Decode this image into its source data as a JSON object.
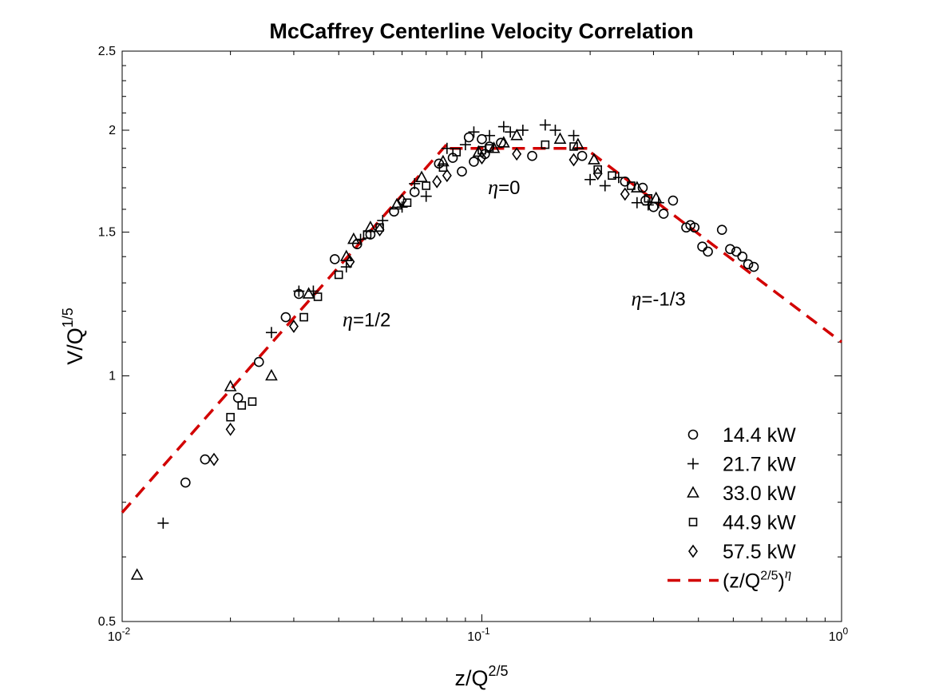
{
  "chart_data": {
    "type": "scatter",
    "title": "McCaffrey Centerline Velocity Correlation",
    "xlabel": {
      "base": "z/Q",
      "sup": "2/5"
    },
    "ylabel": {
      "base": "V/Q",
      "sup": "1/5"
    },
    "xscale": "log",
    "yscale": "log",
    "xlim": [
      0.01,
      1
    ],
    "ylim": [
      0.5,
      2.5
    ],
    "x_ticks": [
      {
        "value": 0.01,
        "base": "10",
        "sup": "-2"
      },
      {
        "value": 0.1,
        "base": "10",
        "sup": "-1"
      },
      {
        "value": 1,
        "base": "10",
        "sup": "0"
      }
    ],
    "y_ticks": [
      {
        "value": 0.5,
        "label": "0.5"
      },
      {
        "value": 1,
        "label": "1"
      },
      {
        "value": 1.5,
        "label": "1.5"
      },
      {
        "value": 2,
        "label": "2"
      },
      {
        "value": 2.5,
        "label": "2.5"
      }
    ],
    "grid": false,
    "legend_position": "bottom-right",
    "series": [
      {
        "name": "14.4 kW",
        "marker": "circle",
        "points": [
          [
            0.015,
            0.74
          ],
          [
            0.017,
            0.79
          ],
          [
            0.021,
            0.94
          ],
          [
            0.024,
            1.04
          ],
          [
            0.0285,
            1.18
          ],
          [
            0.031,
            1.26
          ],
          [
            0.039,
            1.39
          ],
          [
            0.045,
            1.45
          ],
          [
            0.049,
            1.49
          ],
          [
            0.057,
            1.59
          ],
          [
            0.065,
            1.68
          ],
          [
            0.076,
            1.82
          ],
          [
            0.083,
            1.85
          ],
          [
            0.088,
            1.78
          ],
          [
            0.092,
            1.96
          ],
          [
            0.095,
            1.83
          ],
          [
            0.1,
            1.95
          ],
          [
            0.102,
            1.87
          ],
          [
            0.105,
            1.91
          ],
          [
            0.113,
            1.93
          ],
          [
            0.138,
            1.86
          ],
          [
            0.19,
            1.86
          ],
          [
            0.25,
            1.73
          ],
          [
            0.28,
            1.7
          ],
          [
            0.285,
            1.64
          ],
          [
            0.3,
            1.61
          ],
          [
            0.32,
            1.58
          ],
          [
            0.34,
            1.64
          ],
          [
            0.37,
            1.52
          ],
          [
            0.38,
            1.53
          ],
          [
            0.39,
            1.52
          ],
          [
            0.41,
            1.44
          ],
          [
            0.425,
            1.42
          ],
          [
            0.465,
            1.51
          ],
          [
            0.49,
            1.43
          ],
          [
            0.51,
            1.42
          ],
          [
            0.53,
            1.4
          ],
          [
            0.55,
            1.37
          ],
          [
            0.57,
            1.36
          ]
        ]
      },
      {
        "name": "21.7 kW",
        "marker": "plus",
        "points": [
          [
            0.013,
            0.66
          ],
          [
            0.026,
            1.13
          ],
          [
            0.031,
            1.27
          ],
          [
            0.034,
            1.27
          ],
          [
            0.042,
            1.36
          ],
          [
            0.046,
            1.47
          ],
          [
            0.053,
            1.55
          ],
          [
            0.06,
            1.61
          ],
          [
            0.065,
            1.72
          ],
          [
            0.07,
            1.66
          ],
          [
            0.08,
            1.9
          ],
          [
            0.09,
            1.92
          ],
          [
            0.095,
            1.99
          ],
          [
            0.105,
            1.97
          ],
          [
            0.115,
            2.02
          ],
          [
            0.12,
            1.99
          ],
          [
            0.13,
            2.0
          ],
          [
            0.15,
            2.03
          ],
          [
            0.16,
            2.0
          ],
          [
            0.18,
            1.97
          ],
          [
            0.2,
            1.74
          ],
          [
            0.22,
            1.71
          ],
          [
            0.24,
            1.75
          ],
          [
            0.27,
            1.63
          ],
          [
            0.29,
            1.62
          ],
          [
            0.31,
            1.63
          ]
        ]
      },
      {
        "name": "33.0 kW",
        "marker": "triangle",
        "points": [
          [
            0.011,
            0.57
          ],
          [
            0.02,
            0.97
          ],
          [
            0.026,
            1.0
          ],
          [
            0.033,
            1.26
          ],
          [
            0.042,
            1.4
          ],
          [
            0.044,
            1.47
          ],
          [
            0.049,
            1.52
          ],
          [
            0.058,
            1.62
          ],
          [
            0.068,
            1.75
          ],
          [
            0.078,
            1.83
          ],
          [
            0.098,
            1.88
          ],
          [
            0.108,
            1.9
          ],
          [
            0.115,
            1.93
          ],
          [
            0.125,
            1.97
          ],
          [
            0.165,
            1.95
          ],
          [
            0.185,
            1.92
          ],
          [
            0.205,
            1.84
          ],
          [
            0.27,
            1.7
          ],
          [
            0.305,
            1.65
          ]
        ]
      },
      {
        "name": "44.9 kW",
        "marker": "square",
        "points": [
          [
            0.02,
            0.89
          ],
          [
            0.0215,
            0.92
          ],
          [
            0.023,
            0.93
          ],
          [
            0.032,
            1.18
          ],
          [
            0.035,
            1.25
          ],
          [
            0.04,
            1.33
          ],
          [
            0.048,
            1.49
          ],
          [
            0.052,
            1.52
          ],
          [
            0.062,
            1.63
          ],
          [
            0.07,
            1.71
          ],
          [
            0.078,
            1.8
          ],
          [
            0.085,
            1.88
          ],
          [
            0.1,
            1.89
          ],
          [
            0.105,
            1.9
          ],
          [
            0.15,
            1.92
          ],
          [
            0.18,
            1.91
          ],
          [
            0.21,
            1.79
          ],
          [
            0.23,
            1.76
          ],
          [
            0.26,
            1.71
          ],
          [
            0.29,
            1.65
          ]
        ]
      },
      {
        "name": "57.5 kW",
        "marker": "diamond",
        "points": [
          [
            0.018,
            0.79
          ],
          [
            0.02,
            0.86
          ],
          [
            0.03,
            1.15
          ],
          [
            0.043,
            1.38
          ],
          [
            0.052,
            1.51
          ],
          [
            0.06,
            1.64
          ],
          [
            0.075,
            1.73
          ],
          [
            0.08,
            1.76
          ],
          [
            0.1,
            1.85
          ],
          [
            0.125,
            1.87
          ],
          [
            0.18,
            1.84
          ],
          [
            0.21,
            1.77
          ],
          [
            0.25,
            1.67
          ]
        ]
      },
      {
        "name": "(z/Q^{2/5})^η",
        "style": "dashed",
        "color": "#d20000",
        "regimes": [
          {
            "eta": "1/2",
            "coef": 6.8,
            "x_from": 0.01,
            "x_to": 0.08
          },
          {
            "eta": "0",
            "coef": 1.9,
            "x_from": 0.08,
            "x_to": 0.2
          },
          {
            "eta": "-1/3",
            "coef": 1.1,
            "x_from": 0.2,
            "x_to": 1.0
          }
        ]
      }
    ],
    "annotations": [
      {
        "symbol": "η",
        "text": "=0",
        "x": 0.104,
        "y": 1.67
      },
      {
        "symbol": "η",
        "text": "=1/2",
        "x": 0.041,
        "y": 1.15
      },
      {
        "symbol": "η",
        "text": "=-1/3",
        "x": 0.26,
        "y": 1.22
      }
    ],
    "legend": [
      {
        "marker": "circle",
        "label": "14.4 kW"
      },
      {
        "marker": "plus",
        "label": "21.7 kW"
      },
      {
        "marker": "triangle",
        "label": "33.0 kW"
      },
      {
        "marker": "square",
        "label": "44.9 kW"
      },
      {
        "marker": "diamond",
        "label": "57.5 kW"
      },
      {
        "marker": "dashed-line",
        "label_base": "(z/Q",
        "label_sup": "2/5",
        "label_close": ")",
        "label_exp": "η"
      }
    ],
    "colors": {
      "markers": "#000000",
      "fit_line": "#d20000",
      "axes": "#000000",
      "background": "#ffffff"
    }
  }
}
